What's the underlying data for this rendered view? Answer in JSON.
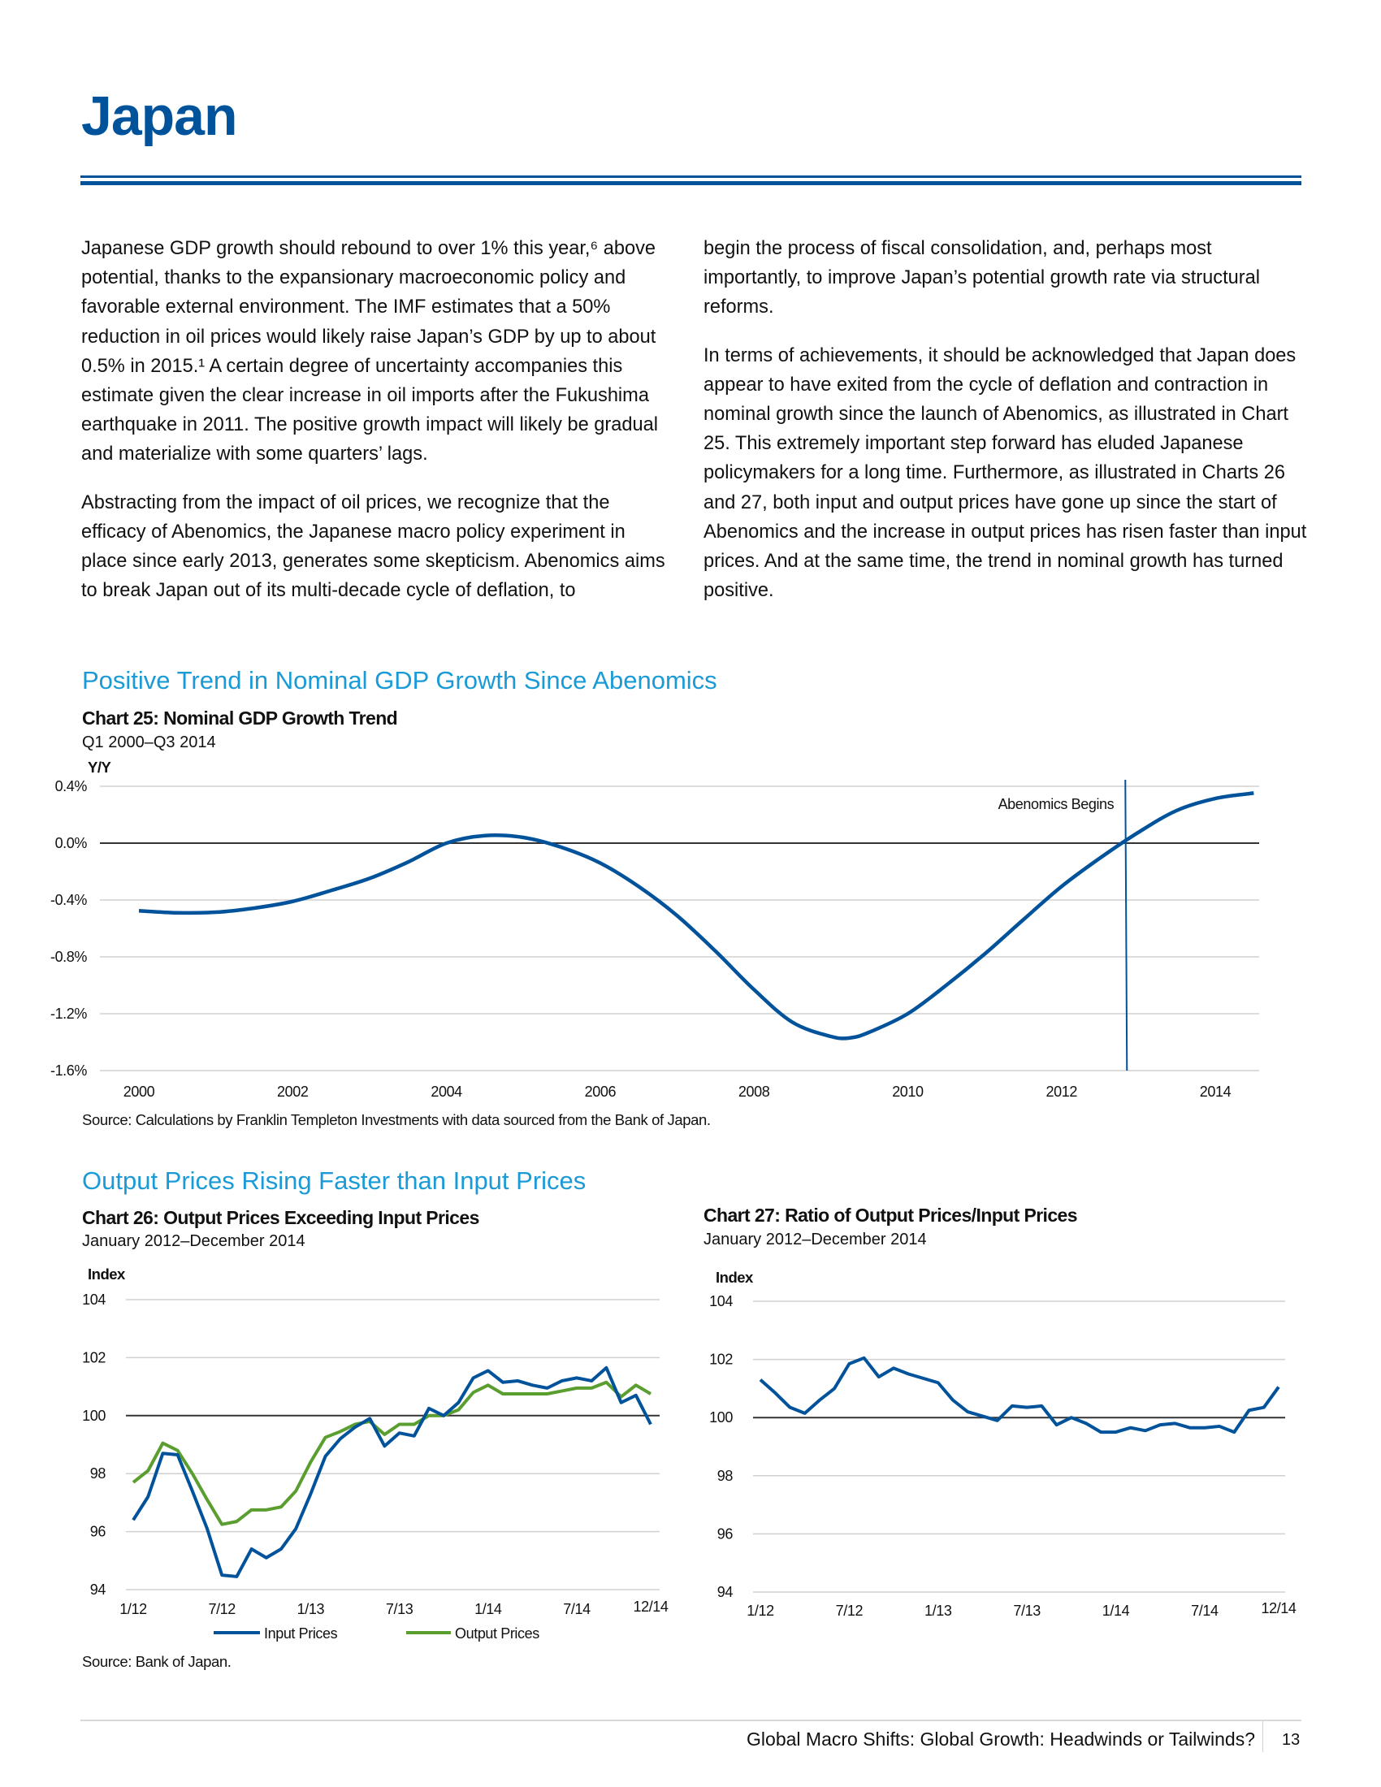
{
  "header": {
    "title": "Japan"
  },
  "body": {
    "left": [
      "Japanese GDP growth should rebound to over 1% this year,⁶ above potential, thanks to the expansionary macroeconomic policy and favorable external environment. The IMF estimates that a 50% reduction in oil prices would likely raise Japan’s GDP by up to about 0.5% in 2015.¹ A certain degree of uncertainty accompanies this estimate given the clear increase in oil imports after the Fukushima earthquake in 2011. The positive growth impact will likely be gradual and materialize with some quarters’ lags.",
      "Abstracting from the impact of oil prices, we recognize that the efficacy of Abenomics, the Japanese macro policy experiment in place since early 2013, generates some skepticism. Abenomics aims to break Japan out of its multi-decade cycle of deflation, to"
    ],
    "right": [
      "begin the process of fiscal consolidation, and, perhaps most importantly, to improve Japan’s potential growth rate via structural reforms.",
      "In terms of achievements, it should be acknowledged that Japan does appear to have exited from the cycle of deflation and contraction in nominal growth since the launch of Abenomics, as illustrated in Chart 25. This extremely important step forward has eluded Japanese policymakers for a long time. Furthermore, as illustrated in Charts 26 and 27, both input and output prices have gone up since the start of Abenomics and the increase in output prices has risen faster than input prices. And at the same time, the trend in nominal growth has turned positive."
    ]
  },
  "section1": {
    "heading": "Positive Trend in Nominal GDP Growth Since Abenomics"
  },
  "section2": {
    "heading": "Output Prices Rising Faster than Input Prices"
  },
  "colors": {
    "brand": "#00539b",
    "accent": "#1a9bd7",
    "input": "#00539b",
    "output": "#5a9e2f",
    "grid": "#d0d0d0",
    "zero": "#333333"
  },
  "chart_data": [
    {
      "type": "line",
      "title": "Chart 25: Nominal GDP Growth Trend",
      "subtitle": "Q1 2000–Q3 2014",
      "ylabel": "Y/Y",
      "ylim": [
        -1.6,
        0.4
      ],
      "yticks": [
        "0.4%",
        "0.0%",
        "-0.4%",
        "-0.8%",
        "-1.2%",
        "-1.6%"
      ],
      "ytick_values": [
        0.4,
        0.0,
        -0.4,
        -0.8,
        -1.2,
        -1.6
      ],
      "xticks": [
        "2000",
        "2002",
        "2004",
        "2006",
        "2008",
        "2010",
        "2012",
        "2014"
      ],
      "xtick_values": [
        2000,
        2002,
        2004,
        2006,
        2008,
        2010,
        2012,
        2014
      ],
      "grid": true,
      "annotation": {
        "label": "Abenomics Begins",
        "x": 2012.83
      },
      "source": "Source: Calculations by Franklin Templeton Investments with data sourced from the Bank of Japan.",
      "series": [
        {
          "name": "Nominal GDP Growth Trend",
          "x": [
            2000,
            2000.5,
            2001,
            2001.5,
            2002,
            2002.5,
            2003,
            2003.5,
            2004,
            2004.5,
            2005,
            2005.5,
            2006,
            2006.5,
            2007,
            2007.5,
            2008,
            2008.5,
            2009,
            2009.25,
            2009.5,
            2010,
            2010.5,
            2011,
            2011.5,
            2012,
            2012.5,
            2013,
            2013.5,
            2014,
            2014.5
          ],
          "y": [
            -0.476,
            -0.49,
            -0.486,
            -0.457,
            -0.41,
            -0.333,
            -0.248,
            -0.133,
            0.0,
            0.053,
            0.04,
            -0.03,
            -0.14,
            -0.305,
            -0.51,
            -0.76,
            -1.03,
            -1.26,
            -1.36,
            -1.37,
            -1.33,
            -1.2,
            -1.0,
            -0.78,
            -0.54,
            -0.305,
            -0.105,
            0.076,
            0.23,
            0.314,
            0.352
          ]
        }
      ]
    },
    {
      "type": "line",
      "title": "Chart 26: Output Prices Exceeding Input Prices",
      "subtitle": "January 2012–December 2014",
      "ylabel": "Index",
      "ylim": [
        94,
        104
      ],
      "yticks": [
        "104",
        "102",
        "100",
        "98",
        "96",
        "94"
      ],
      "ytick_values": [
        104,
        102,
        100,
        98,
        96,
        94
      ],
      "xticks": [
        "1/12",
        "7/12",
        "1/13",
        "7/13",
        "1/14",
        "7/14",
        "12/14"
      ],
      "xtick_months": [
        0,
        6,
        12,
        18,
        24,
        30,
        35
      ],
      "grid": true,
      "legend": "bottom",
      "source": "Source: Bank of Japan.",
      "series": [
        {
          "name": "Input Prices",
          "values": [
            96.4,
            97.2,
            98.7,
            98.65,
            97.4,
            96.1,
            94.5,
            94.45,
            95.4,
            95.1,
            95.4,
            96.1,
            97.3,
            98.6,
            99.2,
            99.6,
            99.9,
            98.95,
            99.4,
            99.3,
            100.25,
            100.0,
            100.45,
            101.3,
            101.55,
            101.15,
            101.2,
            101.05,
            100.95,
            101.2,
            101.3,
            101.2,
            101.65,
            100.45,
            100.7,
            99.7
          ]
        },
        {
          "name": "Output Prices",
          "values": [
            97.7,
            98.1,
            99.05,
            98.8,
            98.0,
            97.1,
            96.25,
            96.35,
            96.75,
            96.75,
            96.85,
            97.4,
            98.4,
            99.25,
            99.45,
            99.7,
            99.8,
            99.35,
            99.7,
            99.7,
            100.0,
            100.0,
            100.2,
            100.8,
            101.05,
            100.75,
            100.75,
            100.75,
            100.75,
            100.85,
            100.95,
            100.95,
            101.15,
            100.65,
            101.05,
            100.75
          ]
        }
      ]
    },
    {
      "type": "line",
      "title": "Chart 27: Ratio of Output Prices/Input Prices",
      "subtitle": "January 2012–December 2014",
      "ylabel": "Index",
      "ylim": [
        94,
        104
      ],
      "yticks": [
        "104",
        "102",
        "100",
        "98",
        "96",
        "94"
      ],
      "ytick_values": [
        104,
        102,
        100,
        98,
        96,
        94
      ],
      "xticks": [
        "1/12",
        "7/12",
        "1/13",
        "7/13",
        "1/14",
        "7/14",
        "12/14"
      ],
      "xtick_months": [
        0,
        6,
        12,
        18,
        24,
        30,
        35
      ],
      "grid": true,
      "series": [
        {
          "name": "Output/Input Ratio",
          "values": [
            101.3,
            100.85,
            100.35,
            100.15,
            100.6,
            101.0,
            101.85,
            102.05,
            101.4,
            101.7,
            101.5,
            101.35,
            101.2,
            100.6,
            100.2,
            100.05,
            99.9,
            100.4,
            100.35,
            100.4,
            99.75,
            100.0,
            99.8,
            99.5,
            99.5,
            99.65,
            99.55,
            99.75,
            99.8,
            99.65,
            99.65,
            99.7,
            99.5,
            100.25,
            100.35,
            101.05
          ]
        }
      ]
    }
  ],
  "footer": {
    "text": "Global Macro Shifts: Global Growth: Headwinds or Tailwinds?",
    "page": "13"
  }
}
